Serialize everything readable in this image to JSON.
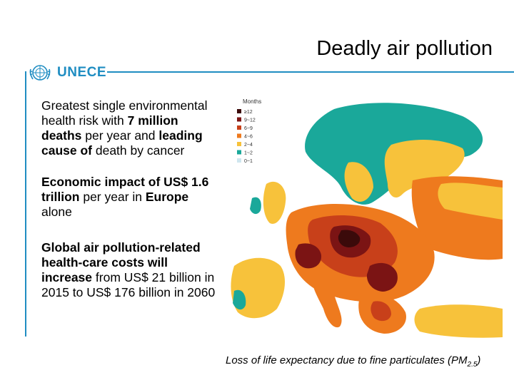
{
  "slide": {
    "title": "Deadly air pollution",
    "logo_text": "UNECE",
    "caption": {
      "main": "Loss of life expectancy due to fine particulates (PM",
      "subscript": "2.5",
      "close": ")"
    }
  },
  "bullets": [
    {
      "t1": "Greatest single environmental health risk with ",
      "b1": "7 million deaths",
      "t2": " per year and ",
      "b2": "leading cause of",
      "t3": " death by cancer"
    },
    {
      "b1": "Economic impact of US$ 1.6 trillion",
      "t1": " per year in ",
      "b2": "Europe",
      "t2": " alone"
    },
    {
      "b1": "Global air pollution-related health-care costs will increase",
      "t1": " from US$ 21 billion in 2015 to US$ 176 billion in 2060"
    }
  ],
  "map_legend": {
    "title": "Months",
    "items": [
      {
        "label": "≥12",
        "color": "#3b0a0a"
      },
      {
        "label": "9~12",
        "color": "#7b1414"
      },
      {
        "label": "6~9",
        "color": "#c8401a"
      },
      {
        "label": "4~6",
        "color": "#ee7a1e"
      },
      {
        "label": "2~4",
        "color": "#f7c23b"
      },
      {
        "label": "1~2",
        "color": "#1aa89a"
      },
      {
        "label": "0~1",
        "color": "#cfe6ef"
      }
    ]
  },
  "colors": {
    "accent": "#1f8dc2",
    "sea": "#ffffff",
    "low": "#cfe6ef"
  }
}
